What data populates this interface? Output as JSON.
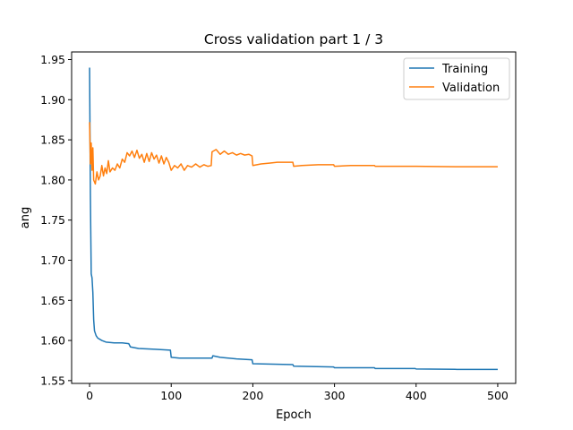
{
  "chart_data": {
    "type": "line",
    "title": "Cross validation part 1 / 3",
    "xlabel": "Epoch",
    "ylabel": "ang",
    "xlim": [
      -22,
      522
    ],
    "ylim": [
      1.5465,
      1.9595
    ],
    "xticks": [
      0,
      100,
      200,
      300,
      400,
      500
    ],
    "yticks": [
      1.55,
      1.6,
      1.65,
      1.7,
      1.75,
      1.8,
      1.85,
      1.9,
      1.95
    ],
    "grid": false,
    "legend_position": "top-right",
    "series": [
      {
        "name": "Training",
        "color": "#1f77b4",
        "points": [
          [
            0,
            1.94
          ],
          [
            1,
            1.78
          ],
          [
            2,
            1.683
          ],
          [
            3,
            1.678
          ],
          [
            4,
            1.66
          ],
          [
            5,
            1.626
          ],
          [
            6,
            1.612
          ],
          [
            8,
            1.606
          ],
          [
            10,
            1.603
          ],
          [
            15,
            1.6
          ],
          [
            20,
            1.598
          ],
          [
            30,
            1.597
          ],
          [
            40,
            1.597
          ],
          [
            48,
            1.596
          ],
          [
            50,
            1.592
          ],
          [
            60,
            1.59
          ],
          [
            80,
            1.589
          ],
          [
            99,
            1.588
          ],
          [
            100,
            1.579
          ],
          [
            110,
            1.578
          ],
          [
            150,
            1.578
          ],
          [
            151,
            1.581
          ],
          [
            160,
            1.579
          ],
          [
            180,
            1.577
          ],
          [
            199,
            1.576
          ],
          [
            200,
            1.571
          ],
          [
            249,
            1.57
          ],
          [
            250,
            1.568
          ],
          [
            299,
            1.567
          ],
          [
            300,
            1.566
          ],
          [
            349,
            1.566
          ],
          [
            350,
            1.565
          ],
          [
            399,
            1.565
          ],
          [
            400,
            1.5645
          ],
          [
            450,
            1.564
          ],
          [
            500,
            1.564
          ]
        ]
      },
      {
        "name": "Validation",
        "color": "#ff7f0e",
        "points": [
          [
            0,
            1.872
          ],
          [
            1,
            1.82
          ],
          [
            2,
            1.846
          ],
          [
            3,
            1.812
          ],
          [
            4,
            1.84
          ],
          [
            5,
            1.8
          ],
          [
            7,
            1.795
          ],
          [
            9,
            1.81
          ],
          [
            11,
            1.8
          ],
          [
            13,
            1.805
          ],
          [
            15,
            1.818
          ],
          [
            17,
            1.805
          ],
          [
            19,
            1.815
          ],
          [
            21,
            1.808
          ],
          [
            23,
            1.824
          ],
          [
            25,
            1.81
          ],
          [
            28,
            1.815
          ],
          [
            31,
            1.812
          ],
          [
            34,
            1.82
          ],
          [
            37,
            1.815
          ],
          [
            40,
            1.826
          ],
          [
            43,
            1.822
          ],
          [
            46,
            1.834
          ],
          [
            49,
            1.83
          ],
          [
            52,
            1.836
          ],
          [
            55,
            1.828
          ],
          [
            58,
            1.837
          ],
          [
            61,
            1.827
          ],
          [
            64,
            1.832
          ],
          [
            67,
            1.822
          ],
          [
            70,
            1.833
          ],
          [
            73,
            1.823
          ],
          [
            76,
            1.834
          ],
          [
            79,
            1.826
          ],
          [
            82,
            1.831
          ],
          [
            85,
            1.821
          ],
          [
            88,
            1.83
          ],
          [
            91,
            1.82
          ],
          [
            94,
            1.828
          ],
          [
            97,
            1.822
          ],
          [
            100,
            1.812
          ],
          [
            104,
            1.818
          ],
          [
            108,
            1.815
          ],
          [
            112,
            1.82
          ],
          [
            116,
            1.812
          ],
          [
            120,
            1.818
          ],
          [
            125,
            1.816
          ],
          [
            130,
            1.82
          ],
          [
            135,
            1.816
          ],
          [
            140,
            1.819
          ],
          [
            145,
            1.817
          ],
          [
            149,
            1.818
          ],
          [
            150,
            1.835
          ],
          [
            155,
            1.838
          ],
          [
            160,
            1.832
          ],
          [
            165,
            1.836
          ],
          [
            170,
            1.832
          ],
          [
            175,
            1.834
          ],
          [
            180,
            1.831
          ],
          [
            185,
            1.833
          ],
          [
            190,
            1.831
          ],
          [
            195,
            1.832
          ],
          [
            199,
            1.83
          ],
          [
            200,
            1.818
          ],
          [
            210,
            1.82
          ],
          [
            220,
            1.821
          ],
          [
            230,
            1.822
          ],
          [
            240,
            1.822
          ],
          [
            249,
            1.822
          ],
          [
            250,
            1.817
          ],
          [
            260,
            1.818
          ],
          [
            280,
            1.819
          ],
          [
            299,
            1.819
          ],
          [
            300,
            1.817
          ],
          [
            320,
            1.818
          ],
          [
            349,
            1.818
          ],
          [
            350,
            1.817
          ],
          [
            380,
            1.817
          ],
          [
            400,
            1.817
          ],
          [
            450,
            1.8165
          ],
          [
            500,
            1.8165
          ]
        ]
      }
    ]
  }
}
